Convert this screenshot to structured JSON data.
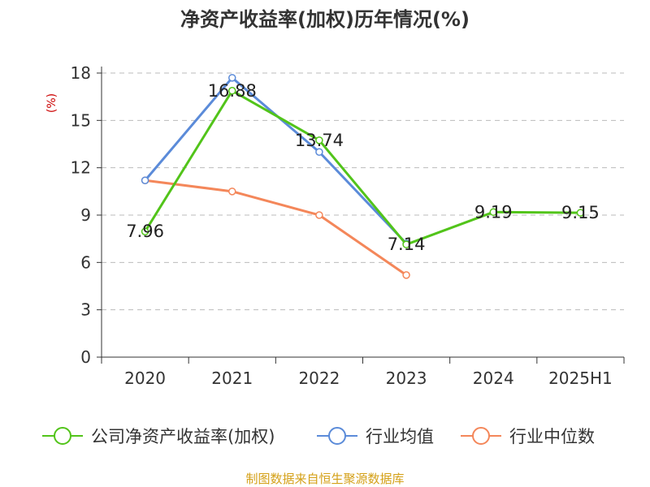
{
  "chart_data": {
    "type": "line",
    "title": "净资产收益率(加权)历年情况(%)",
    "ylabel": "(%)",
    "xlabel": "",
    "categories": [
      "2020",
      "2021",
      "2022",
      "2023",
      "2024",
      "2025H1"
    ],
    "ylim": [
      0,
      18
    ],
    "yticks": [
      0,
      3,
      6,
      9,
      12,
      15,
      18
    ],
    "grid": true,
    "legend_position": "bottom",
    "series": [
      {
        "name": "公司净资产收益率(加权)",
        "color": "#52c41a",
        "values": [
          7.96,
          16.88,
          13.74,
          7.14,
          9.19,
          9.15
        ],
        "labeled": true
      },
      {
        "name": "行业均值",
        "color": "#5b8bd9",
        "values": [
          11.2,
          17.7,
          13.0,
          7.2,
          null,
          null
        ],
        "labeled": false
      },
      {
        "name": "行业中位数",
        "color": "#f4875a",
        "values": [
          11.2,
          10.5,
          9.0,
          5.2,
          null,
          null
        ],
        "labeled": false
      }
    ]
  },
  "source": "制图数据来自恒生聚源数据库"
}
